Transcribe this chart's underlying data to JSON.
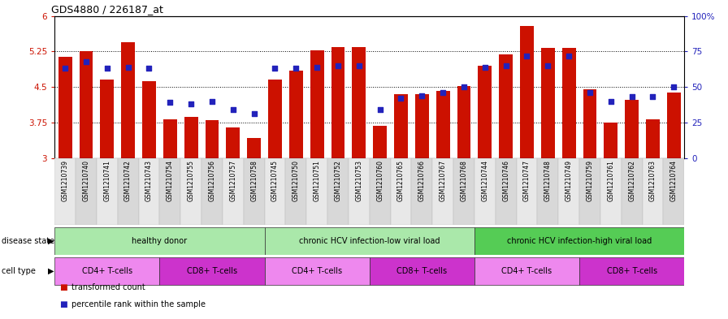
{
  "title": "GDS4880 / 226187_at",
  "samples": [
    "GSM1210739",
    "GSM1210740",
    "GSM1210741",
    "GSM1210742",
    "GSM1210743",
    "GSM1210754",
    "GSM1210755",
    "GSM1210756",
    "GSM1210757",
    "GSM1210758",
    "GSM1210745",
    "GSM1210750",
    "GSM1210751",
    "GSM1210752",
    "GSM1210753",
    "GSM1210760",
    "GSM1210765",
    "GSM1210766",
    "GSM1210767",
    "GSM1210768",
    "GSM1210744",
    "GSM1210746",
    "GSM1210747",
    "GSM1210748",
    "GSM1210749",
    "GSM1210759",
    "GSM1210761",
    "GSM1210762",
    "GSM1210763",
    "GSM1210764"
  ],
  "bar_values": [
    5.13,
    5.25,
    4.65,
    5.45,
    4.63,
    3.82,
    3.87,
    3.8,
    3.65,
    3.42,
    4.65,
    4.85,
    5.28,
    5.35,
    5.35,
    3.68,
    4.35,
    4.35,
    4.42,
    4.52,
    4.95,
    5.18,
    5.78,
    5.32,
    5.32,
    4.45,
    3.75,
    4.22,
    3.82,
    4.38
  ],
  "percentile_values": [
    63,
    68,
    63,
    64,
    63,
    39,
    38,
    40,
    34,
    31,
    63,
    63,
    64,
    65,
    65,
    34,
    42,
    44,
    46,
    50,
    64,
    65,
    72,
    65,
    72,
    46,
    40,
    43,
    43,
    50
  ],
  "ymin": 3.0,
  "ymax": 6.0,
  "yticks": [
    3.0,
    3.75,
    4.5,
    5.25,
    6.0
  ],
  "ytick_labels": [
    "3",
    "3.75",
    "4.5",
    "5.25",
    "6"
  ],
  "right_yticks": [
    0,
    25,
    50,
    75,
    100
  ],
  "right_ytick_labels": [
    "0",
    "25",
    "50",
    "75",
    "100%"
  ],
  "bar_color": "#cc1100",
  "marker_color": "#2222bb",
  "disease_states": [
    {
      "label": "healthy donor",
      "start": 0,
      "end": 9,
      "color": "#aae8aa"
    },
    {
      "label": "chronic HCV infection-low viral load",
      "start": 10,
      "end": 19,
      "color": "#aae8aa"
    },
    {
      "label": "chronic HCV infection-high viral load",
      "start": 20,
      "end": 29,
      "color": "#55cc55"
    }
  ],
  "cell_types": [
    {
      "label": "CD4+ T-cells",
      "start": 0,
      "end": 4,
      "color": "#ee88ee"
    },
    {
      "label": "CD8+ T-cells",
      "start": 5,
      "end": 9,
      "color": "#cc33cc"
    },
    {
      "label": "CD4+ T-cells",
      "start": 10,
      "end": 14,
      "color": "#ee88ee"
    },
    {
      "label": "CD8+ T-cells",
      "start": 15,
      "end": 19,
      "color": "#cc33cc"
    },
    {
      "label": "CD4+ T-cells",
      "start": 20,
      "end": 24,
      "color": "#ee88ee"
    },
    {
      "label": "CD8+ T-cells",
      "start": 25,
      "end": 29,
      "color": "#cc33cc"
    }
  ],
  "legend": [
    {
      "label": "transformed count",
      "color": "#cc1100"
    },
    {
      "label": "percentile rank within the sample",
      "color": "#2222bb"
    }
  ],
  "n_samples": 30
}
